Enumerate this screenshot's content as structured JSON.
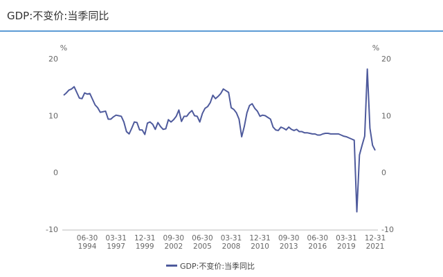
{
  "chart_data": {
    "type": "line",
    "title": "GDP:不变价:当季同比",
    "y_label": "%",
    "y2_label": "%",
    "categories": [
      null,
      null,
      null,
      null,
      null,
      null,
      null,
      null,
      null,
      "06-30\n1994",
      null,
      null,
      null,
      null,
      null,
      null,
      null,
      null,
      null,
      null,
      "03-31\n1997",
      null,
      null,
      null,
      null,
      null,
      null,
      null,
      null,
      null,
      null,
      "12-31\n1999",
      null,
      null,
      null,
      null,
      null,
      null,
      null,
      null,
      null,
      null,
      "09-30\n2002",
      null,
      null,
      null,
      null,
      null,
      null,
      null,
      null,
      null,
      null,
      "06-30\n2005",
      null,
      null,
      null,
      null,
      null,
      null,
      null,
      null,
      null,
      null,
      "03-31\n2008",
      null,
      null,
      null,
      null,
      null,
      null,
      null,
      null,
      null,
      null,
      "12-31\n2010",
      null,
      null,
      null,
      null,
      null,
      null,
      null,
      null,
      null,
      null,
      "09-30\n2013",
      null,
      null,
      null,
      null,
      null,
      null,
      null,
      null,
      null,
      null,
      "06-30\n2016",
      null,
      null,
      null,
      null,
      null,
      null,
      null,
      null,
      null,
      null,
      "03-31\n2019",
      null,
      null,
      null,
      null,
      null,
      null,
      null,
      null,
      null,
      null,
      "12-31\n2021"
    ],
    "series": [
      {
        "name": "GDP:不变价:当季同比",
        "color": "#4e5a9c",
        "values": [
          13.7,
          14.1,
          14.6,
          14.8,
          15.2,
          14.2,
          13.2,
          13.1,
          14.1,
          13.9,
          14.0,
          13.0,
          12.0,
          11.5,
          10.7,
          10.8,
          10.9,
          9.5,
          9.5,
          9.9,
          10.2,
          10.1,
          10.0,
          9.0,
          7.3,
          6.9,
          7.9,
          9.0,
          8.9,
          7.6,
          7.6,
          6.8,
          8.8,
          9.0,
          8.6,
          7.7,
          8.9,
          8.2,
          7.7,
          7.8,
          9.4,
          9.0,
          9.4,
          10.0,
          11.1,
          9.1,
          10.0,
          10.0,
          10.6,
          11.0,
          10.1,
          10.0,
          9.0,
          10.5,
          11.4,
          11.7,
          12.4,
          13.7,
          13.1,
          13.5,
          14.0,
          14.8,
          14.5,
          14.2,
          11.5,
          11.2,
          10.6,
          9.5,
          6.4,
          8.2,
          10.6,
          11.9,
          12.2,
          11.4,
          10.9,
          10.0,
          10.2,
          10.1,
          9.8,
          9.5,
          8.1,
          7.6,
          7.5,
          8.1,
          7.9,
          7.6,
          8.1,
          7.7,
          7.5,
          7.7,
          7.3,
          7.3,
          7.1,
          7.1,
          7.0,
          6.9,
          6.9,
          6.7,
          6.7,
          6.9,
          7.0,
          7.0,
          6.9,
          6.9,
          6.9,
          6.9,
          6.7,
          6.5,
          6.4,
          6.2,
          6.0,
          5.8,
          -6.8,
          3.2,
          4.9,
          6.5,
          18.3,
          7.9,
          4.9,
          4.0
        ]
      }
    ],
    "ylim": [
      -10,
      20
    ],
    "yticks": [
      -10,
      0,
      10,
      20
    ],
    "y2lim": [
      -10,
      20
    ],
    "y2ticks": [
      -10,
      0,
      10,
      20
    ],
    "grid": false,
    "legend": "bottom"
  }
}
